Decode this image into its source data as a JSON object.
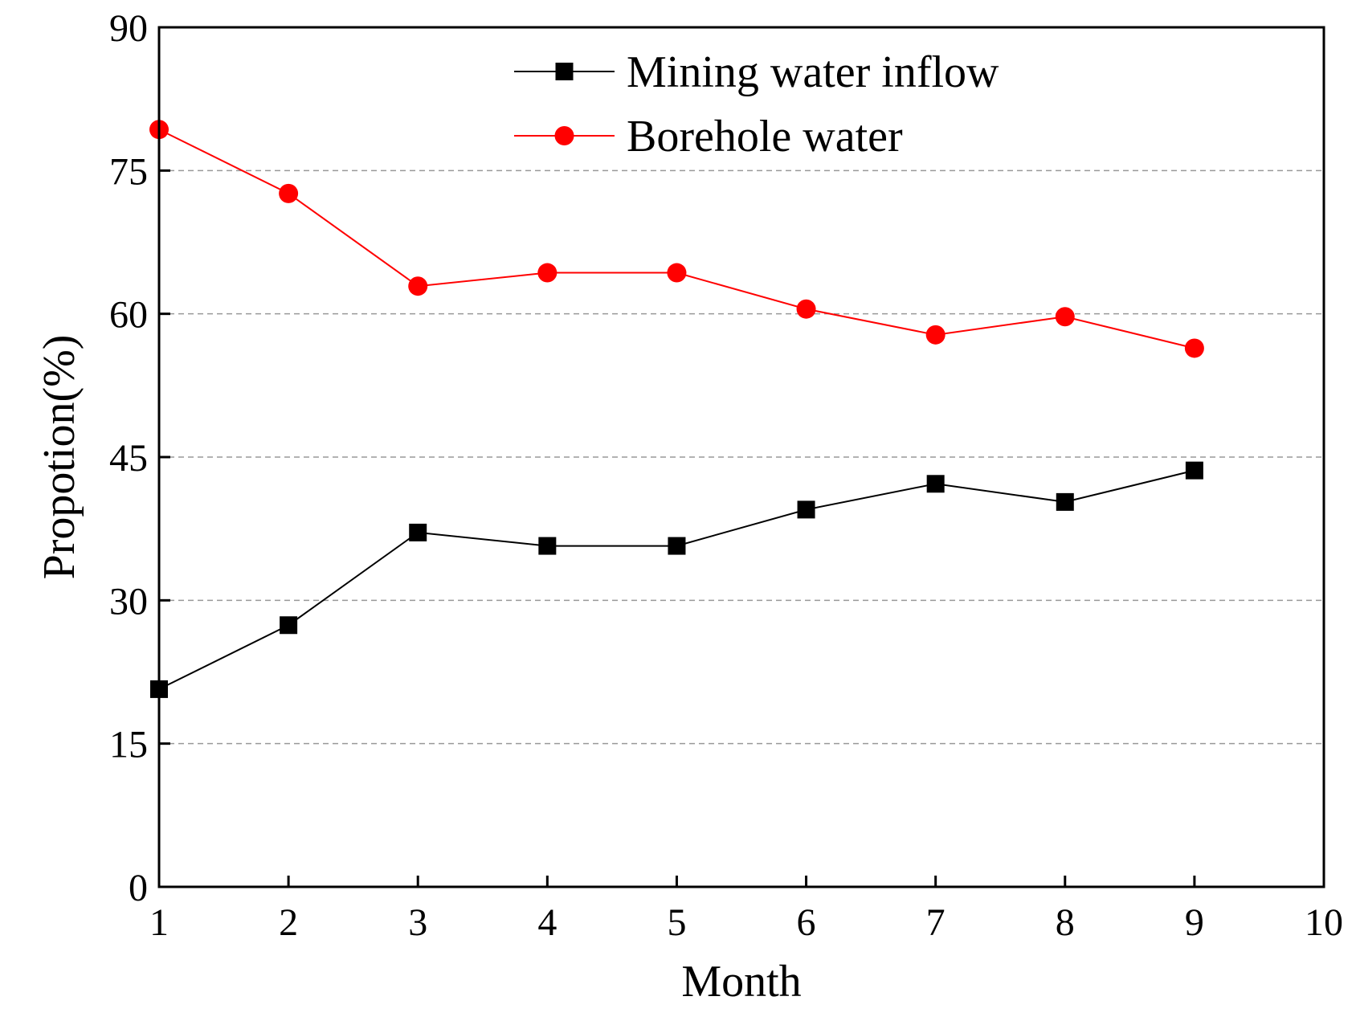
{
  "chart_data": {
    "type": "line",
    "title": "",
    "xlabel": "Month",
    "ylabel": "Propotion(%)",
    "xlim": [
      1,
      10
    ],
    "ylim": [
      0,
      90
    ],
    "x_ticks": [
      1,
      2,
      3,
      4,
      5,
      6,
      7,
      8,
      9,
      10
    ],
    "y_ticks": [
      0,
      15,
      30,
      45,
      60,
      75,
      90
    ],
    "grid": {
      "horizontal": true,
      "style": "dashed",
      "color": "#999999"
    },
    "legend_position": "top-center",
    "x": [
      1,
      2,
      3,
      4,
      5,
      6,
      7,
      8,
      9
    ],
    "series": [
      {
        "name": "Mining water inflow",
        "marker": "square",
        "color": "#000000",
        "values": [
          20.7,
          27.4,
          37.1,
          35.7,
          35.7,
          39.5,
          42.2,
          40.3,
          43.6
        ]
      },
      {
        "name": "Borehole water",
        "marker": "circle",
        "color": "#ff0000",
        "values": [
          79.3,
          72.6,
          62.9,
          64.3,
          64.3,
          60.5,
          57.8,
          59.7,
          56.4
        ]
      }
    ]
  }
}
